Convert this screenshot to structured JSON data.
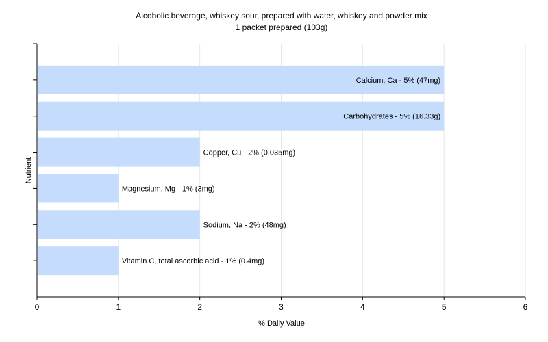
{
  "chart_data": {
    "type": "bar",
    "orientation": "horizontal",
    "title": "Alcoholic beverage, whiskey sour, prepared with water, whiskey and powder mix",
    "subtitle": "1 packet prepared (103g)",
    "xlabel": "% Daily Value",
    "ylabel": "Nutrient",
    "xlim": [
      0,
      6
    ],
    "xticks": [
      "0",
      "1",
      "2",
      "3",
      "4",
      "5",
      "6"
    ],
    "grid": true,
    "bar_color": "#c5dcfc",
    "categories": [
      "Calcium, Ca",
      "Carbohydrates",
      "Copper, Cu",
      "Magnesium, Mg",
      "Sodium, Na",
      "Vitamin C, total ascorbic acid"
    ],
    "values": [
      5,
      5,
      2,
      1,
      2,
      1
    ],
    "labels": [
      "Calcium, Ca - 5% (47mg)",
      "Carbohydrates - 5% (16.33g)",
      "Copper, Cu - 2% (0.035mg)",
      "Magnesium, Mg - 1% (3mg)",
      "Sodium, Na - 2% (48mg)",
      "Vitamin C, total ascorbic acid - 1% (0.4mg)"
    ]
  }
}
